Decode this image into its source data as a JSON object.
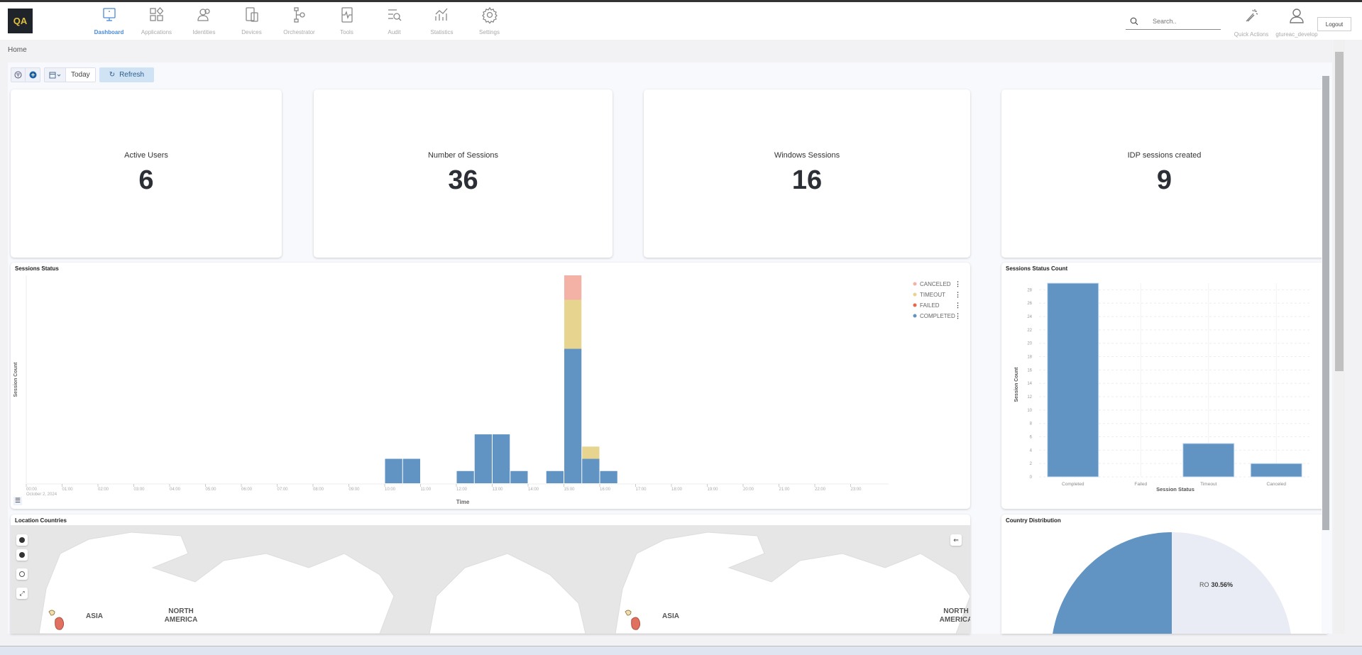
{
  "app": {
    "logo": "QA"
  },
  "nav": [
    {
      "label": "Dashboard",
      "icon": "monitor-icon",
      "active": true
    },
    {
      "label": "Applications",
      "icon": "apps-icon"
    },
    {
      "label": "Identities",
      "icon": "users-icon"
    },
    {
      "label": "Devices",
      "icon": "devices-icon"
    },
    {
      "label": "Orchestrator",
      "icon": "flow-icon"
    },
    {
      "label": "Tools",
      "icon": "tools-icon"
    },
    {
      "label": "Audit",
      "icon": "audit-icon"
    },
    {
      "label": "Statistics",
      "icon": "statistics-icon"
    },
    {
      "label": "Settings",
      "icon": "gear-icon"
    }
  ],
  "header": {
    "search_placeholder": "Search..",
    "quick_actions": "Quick Actions",
    "username": "gtureac_develop",
    "logout": "Logout"
  },
  "breadcrumb": "Home",
  "toolbar": {
    "date_range": "Today",
    "refresh": "Refresh"
  },
  "kpis": [
    {
      "label": "Active Users",
      "value": "6"
    },
    {
      "label": "Number of Sessions",
      "value": "36"
    },
    {
      "label": "Windows Sessions",
      "value": "16"
    },
    {
      "label": "IDP sessions created",
      "value": "9"
    }
  ],
  "colors": {
    "completed": "#6194c2",
    "failed": "#e7664c",
    "timeout": "#e6d48f",
    "canceled": "#f4b2a6",
    "accent": "#4a8ad8"
  },
  "chart_data": [
    {
      "type": "bar",
      "stacked": true,
      "title": "Sessions Status",
      "xlabel": "Time",
      "ylabel": "Session Count",
      "date_label": "October 2, 2024",
      "x_ticks": [
        "00:00",
        "01:00",
        "02:00",
        "03:00",
        "04:00",
        "05:00",
        "06:00",
        "07:00",
        "08:00",
        "09:00",
        "10:00",
        "11:00",
        "12:00",
        "13:00",
        "14:00",
        "15:00",
        "16:00",
        "17:00",
        "18:00",
        "19:00",
        "20:00",
        "21:00",
        "22:00",
        "23:00"
      ],
      "x": [
        "10:00",
        "10:30",
        "12:00",
        "12:30",
        "13:00",
        "13:30",
        "14:30",
        "15:00",
        "15:30",
        "16:00"
      ],
      "series": [
        {
          "name": "COMPLETED",
          "values": [
            2,
            2,
            1,
            4,
            4,
            1,
            1,
            11,
            2,
            1
          ]
        },
        {
          "name": "FAILED",
          "values": [
            0,
            0,
            0,
            0,
            0,
            0,
            0,
            0,
            0,
            0
          ]
        },
        {
          "name": "TIMEOUT",
          "values": [
            0,
            0,
            0,
            0,
            0,
            0,
            0,
            4,
            1,
            0
          ]
        },
        {
          "name": "CANCELED",
          "values": [
            0,
            0,
            0,
            0,
            0,
            0,
            0,
            2,
            0,
            0
          ]
        }
      ],
      "legend_order": [
        "CANCELED",
        "TIMEOUT",
        "FAILED",
        "COMPLETED"
      ],
      "legend": "top-right",
      "ylim": [
        0,
        17
      ]
    },
    {
      "type": "bar",
      "title": "Sessions Status Count",
      "xlabel": "Session Status",
      "ylabel": "Session Count",
      "categories": [
        "Completed",
        "Failed",
        "Timeout",
        "Canceled"
      ],
      "values": [
        29,
        0,
        5,
        2
      ],
      "y_ticks": [
        0,
        2,
        4,
        6,
        8,
        10,
        12,
        14,
        16,
        18,
        20,
        22,
        24,
        26,
        28
      ],
      "ylim": [
        0,
        29
      ],
      "grid": true
    },
    {
      "type": "pie",
      "title": "Country Distribution",
      "slices": [
        {
          "label": "RO",
          "value": 30.56,
          "display": "30.56%"
        },
        {
          "label": "",
          "value": 69.44
        }
      ]
    }
  ],
  "map": {
    "title": "Location Countries",
    "labels": [
      "ASIA",
      "NORTH",
      "AMERICA"
    ]
  }
}
